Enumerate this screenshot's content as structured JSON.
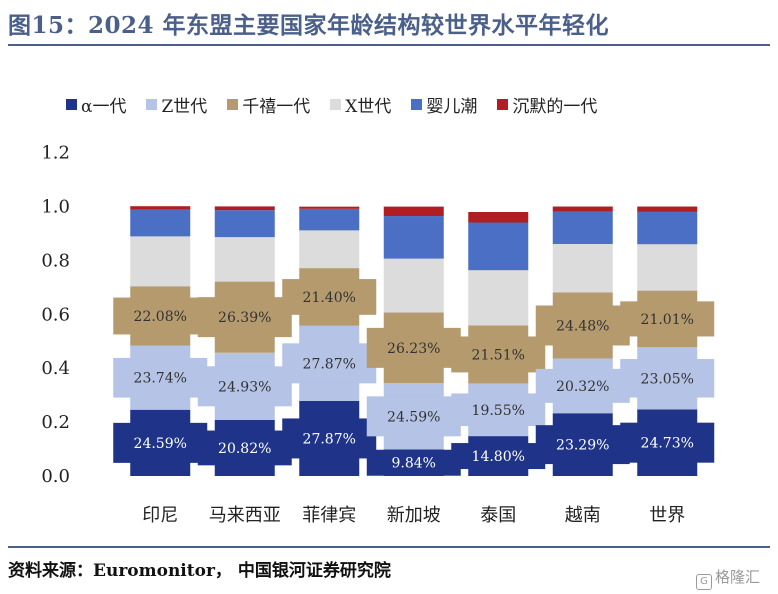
{
  "title": "图15：2024 年东盟主要国家年龄结构较世界水平年轻化",
  "source": "资料来源：Euromonitor， 中国银河证券研究院",
  "watermark": "格隆汇",
  "colors": {
    "title": "#4a5f8a",
    "rule": "#4a5f8a"
  },
  "chart_data": {
    "type": "bar",
    "stacked": true,
    "categories": [
      "印尼",
      "马来西亚",
      "菲律宾",
      "新加坡",
      "泰国",
      "越南",
      "世界"
    ],
    "ylim": [
      0,
      1.2
    ],
    "yticks": [
      "0.0",
      "0.2",
      "0.4",
      "0.6",
      "0.8",
      "1.0",
      "1.2"
    ],
    "grid": false,
    "legend_position": "top",
    "series": [
      {
        "name": "α一代",
        "color": "#1f3488",
        "values": [
          0.2459,
          0.2082,
          0.2787,
          0.0984,
          0.148,
          0.2329,
          0.2473
        ],
        "labels": [
          "24.59%",
          "20.82%",
          "27.87%",
          "9.84%",
          "14.80%",
          "23.29%",
          "24.73%"
        ]
      },
      {
        "name": "Z世代",
        "color": "#b4c3e6",
        "values": [
          0.2374,
          0.2493,
          0.2787,
          0.2459,
          0.1955,
          0.2032,
          0.2305
        ],
        "labels": [
          "23.74%",
          "24.93%",
          "27.87%",
          "24.59%",
          "19.55%",
          "20.32%",
          "23.05%"
        ]
      },
      {
        "name": "千禧一代",
        "color": "#b59a6e",
        "values": [
          0.2208,
          0.2639,
          0.214,
          0.2623,
          0.2151,
          0.2448,
          0.2101
        ],
        "labels": [
          "22.08%",
          "26.39%",
          "21.40%",
          "26.23%",
          "21.51%",
          "24.48%",
          "21.01%"
        ]
      },
      {
        "name": "X世代",
        "color": "#dcdcdc",
        "values": [
          0.185,
          0.165,
          0.14,
          0.2,
          0.205,
          0.18,
          0.172
        ],
        "labels": [
          "",
          "",
          "",
          "",
          "",
          "",
          ""
        ]
      },
      {
        "name": "婴儿潮",
        "color": "#4a6fc4",
        "values": [
          0.1,
          0.1,
          0.08,
          0.158,
          0.177,
          0.12,
          0.12
        ],
        "labels": [
          "",
          "",
          "",
          "",
          "",
          "",
          ""
        ]
      },
      {
        "name": "沉默的一代",
        "color": "#b01e23",
        "values": [
          0.012,
          0.014,
          0.008,
          0.035,
          0.039,
          0.019,
          0.02
        ],
        "labels": [
          "",
          "",
          "",
          "",
          "",
          "",
          ""
        ]
      }
    ]
  }
}
